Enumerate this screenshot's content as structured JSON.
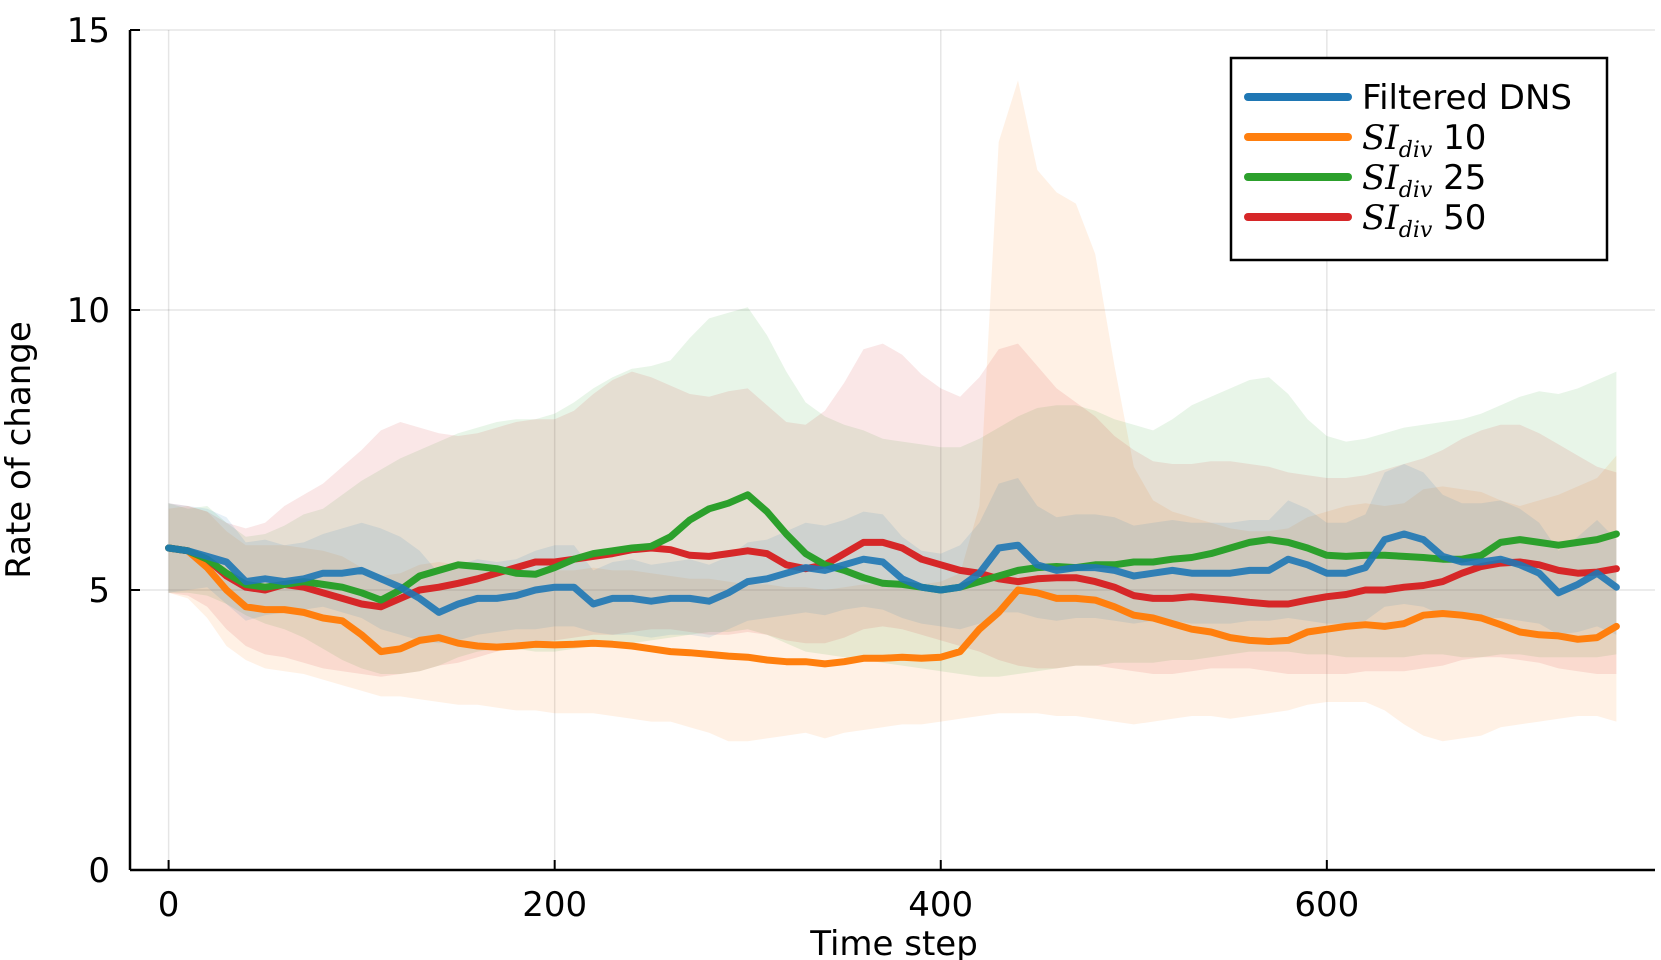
{
  "chart_data": {
    "type": "line",
    "title": "",
    "xlabel": "Time step",
    "ylabel": "Rate of change",
    "xlim": [
      -20,
      770
    ],
    "ylim": [
      0,
      15
    ],
    "xticks": [
      0,
      200,
      400,
      600
    ],
    "yticks": [
      0,
      5,
      10,
      15
    ],
    "grid": true,
    "legend_position": "top-right",
    "x": [
      0,
      10,
      20,
      30,
      40,
      50,
      60,
      70,
      80,
      90,
      100,
      110,
      120,
      130,
      140,
      150,
      160,
      170,
      180,
      190,
      200,
      210,
      220,
      230,
      240,
      250,
      260,
      270,
      280,
      290,
      300,
      310,
      320,
      330,
      340,
      350,
      360,
      370,
      380,
      390,
      400,
      410,
      420,
      430,
      440,
      450,
      460,
      470,
      480,
      490,
      500,
      510,
      520,
      530,
      540,
      550,
      560,
      570,
      580,
      590,
      600,
      610,
      620,
      630,
      640,
      650,
      660,
      670,
      680,
      690,
      700,
      710,
      720,
      730,
      740,
      750
    ],
    "series": [
      {
        "name": "Filtered DNS",
        "legend_label": "Filtered DNS",
        "color": "#1f77b4",
        "values": [
          5.75,
          5.7,
          5.6,
          5.5,
          5.15,
          5.2,
          5.15,
          5.2,
          5.3,
          5.3,
          5.35,
          5.2,
          5.05,
          4.85,
          4.6,
          4.75,
          4.85,
          4.85,
          4.9,
          5.0,
          5.05,
          5.05,
          4.75,
          4.85,
          4.85,
          4.8,
          4.85,
          4.85,
          4.8,
          4.95,
          5.15,
          5.2,
          5.3,
          5.4,
          5.35,
          5.45,
          5.55,
          5.5,
          5.2,
          5.05,
          5.0,
          5.05,
          5.3,
          5.75,
          5.8,
          5.45,
          5.35,
          5.4,
          5.4,
          5.35,
          5.25,
          5.3,
          5.35,
          5.3,
          5.3,
          5.3,
          5.35,
          5.35,
          5.55,
          5.45,
          5.3,
          5.3,
          5.4,
          5.9,
          6.0,
          5.9,
          5.6,
          5.5,
          5.5,
          5.55,
          5.45,
          5.3,
          4.95,
          5.1,
          5.3,
          5.05
        ],
        "band_lower": [
          4.95,
          5.0,
          5.05,
          4.75,
          4.45,
          4.55,
          4.6,
          4.65,
          4.7,
          4.6,
          4.5,
          4.3,
          4.2,
          4.1,
          4.05,
          4.1,
          4.2,
          4.25,
          4.3,
          4.3,
          4.35,
          4.35,
          4.25,
          4.2,
          4.2,
          4.15,
          4.2,
          4.2,
          4.15,
          4.3,
          4.45,
          4.5,
          4.55,
          4.6,
          4.55,
          4.65,
          4.7,
          4.65,
          4.5,
          4.4,
          4.35,
          4.3,
          4.4,
          4.6,
          4.6,
          4.5,
          4.45,
          4.5,
          4.5,
          4.45,
          4.4,
          4.45,
          4.45,
          4.4,
          4.4,
          4.4,
          4.45,
          4.45,
          4.5,
          4.45,
          4.4,
          4.4,
          4.45,
          4.7,
          4.75,
          4.7,
          4.55,
          4.5,
          4.5,
          4.5,
          4.45,
          4.4,
          4.2,
          4.25,
          4.35,
          4.2
        ],
        "band_upper": [
          6.55,
          6.5,
          6.45,
          6.3,
          5.85,
          5.9,
          5.8,
          5.85,
          6.0,
          6.1,
          6.2,
          6.1,
          5.95,
          5.7,
          5.3,
          5.45,
          5.55,
          5.5,
          5.55,
          5.7,
          5.8,
          5.8,
          5.35,
          5.5,
          5.55,
          5.45,
          5.5,
          5.55,
          5.45,
          5.6,
          5.85,
          5.9,
          6.05,
          6.2,
          6.15,
          6.25,
          6.4,
          6.35,
          5.95,
          5.7,
          5.65,
          5.8,
          6.2,
          6.9,
          7.0,
          6.5,
          6.3,
          6.35,
          6.35,
          6.3,
          6.15,
          6.2,
          6.25,
          6.2,
          6.2,
          6.2,
          6.25,
          6.25,
          6.6,
          6.45,
          6.2,
          6.2,
          6.35,
          7.1,
          7.25,
          7.1,
          6.7,
          6.55,
          6.55,
          6.6,
          6.45,
          6.2,
          5.7,
          5.95,
          6.25,
          5.9
        ]
      },
      {
        "name": "SI div 10",
        "legend_math": "SI",
        "legend_sub": "div",
        "legend_suffix": " 10",
        "color": "#ff7f0e",
        "values": [
          5.75,
          5.7,
          5.4,
          5.0,
          4.7,
          4.65,
          4.65,
          4.6,
          4.5,
          4.45,
          4.2,
          3.9,
          3.95,
          4.1,
          4.15,
          4.05,
          4.0,
          3.98,
          4.0,
          4.03,
          4.02,
          4.03,
          4.05,
          4.03,
          4.0,
          3.95,
          3.9,
          3.88,
          3.85,
          3.82,
          3.8,
          3.75,
          3.72,
          3.72,
          3.68,
          3.72,
          3.78,
          3.78,
          3.8,
          3.78,
          3.8,
          3.9,
          4.3,
          4.6,
          5.0,
          4.95,
          4.85,
          4.85,
          4.82,
          4.7,
          4.55,
          4.5,
          4.4,
          4.3,
          4.25,
          4.15,
          4.1,
          4.08,
          4.1,
          4.25,
          4.3,
          4.35,
          4.38,
          4.35,
          4.4,
          4.55,
          4.58,
          4.55,
          4.5,
          4.38,
          4.25,
          4.2,
          4.18,
          4.12,
          4.15,
          4.35
        ],
        "band_lower": [
          4.95,
          4.85,
          4.5,
          4.0,
          3.75,
          3.6,
          3.55,
          3.5,
          3.4,
          3.3,
          3.2,
          3.1,
          3.1,
          3.05,
          3.0,
          2.95,
          2.95,
          2.9,
          2.85,
          2.85,
          2.8,
          2.8,
          2.8,
          2.75,
          2.7,
          2.65,
          2.65,
          2.55,
          2.45,
          2.3,
          2.3,
          2.35,
          2.4,
          2.45,
          2.35,
          2.45,
          2.5,
          2.55,
          2.6,
          2.6,
          2.65,
          2.7,
          2.75,
          2.8,
          2.8,
          2.8,
          2.75,
          2.75,
          2.7,
          2.65,
          2.6,
          2.65,
          2.7,
          2.75,
          2.75,
          2.7,
          2.75,
          2.8,
          2.85,
          2.95,
          3.0,
          3.0,
          3.0,
          2.85,
          2.6,
          2.4,
          2.3,
          2.35,
          2.4,
          2.55,
          2.6,
          2.65,
          2.7,
          2.75,
          2.75,
          2.65
        ],
        "band_upper": [
          6.45,
          6.5,
          6.4,
          6.05,
          5.8,
          5.8,
          5.8,
          5.75,
          5.7,
          5.6,
          5.4,
          5.25,
          5.3,
          5.45,
          5.5,
          5.45,
          5.4,
          5.35,
          5.35,
          5.35,
          5.35,
          5.35,
          5.4,
          5.35,
          5.35,
          5.3,
          5.25,
          5.2,
          5.2,
          5.15,
          5.1,
          5.1,
          5.05,
          5.05,
          5.0,
          5.05,
          5.1,
          5.1,
          5.15,
          5.1,
          5.15,
          5.3,
          6.5,
          13.0,
          14.1,
          12.5,
          12.1,
          11.9,
          11.0,
          9.0,
          7.2,
          6.6,
          6.4,
          6.3,
          6.2,
          6.1,
          6.05,
          6.05,
          6.1,
          6.3,
          6.4,
          6.5,
          6.55,
          6.5,
          6.55,
          6.8,
          6.85,
          6.8,
          6.75,
          6.6,
          6.5,
          6.6,
          6.7,
          6.85,
          7.0,
          7.4
        ]
      },
      {
        "name": "SI div 25",
        "legend_math": "SI",
        "legend_sub": "div",
        "legend_suffix": " 25",
        "color": "#2ca02c",
        "values": [
          5.75,
          5.7,
          5.55,
          5.3,
          5.1,
          5.05,
          5.1,
          5.15,
          5.1,
          5.05,
          4.95,
          4.82,
          5.0,
          5.25,
          5.35,
          5.45,
          5.42,
          5.38,
          5.3,
          5.28,
          5.4,
          5.55,
          5.65,
          5.7,
          5.75,
          5.78,
          5.95,
          6.25,
          6.45,
          6.55,
          6.7,
          6.4,
          6.0,
          5.65,
          5.45,
          5.35,
          5.22,
          5.12,
          5.1,
          5.05,
          5.0,
          5.05,
          5.15,
          5.25,
          5.35,
          5.4,
          5.42,
          5.4,
          5.45,
          5.45,
          5.5,
          5.5,
          5.55,
          5.58,
          5.65,
          5.75,
          5.85,
          5.9,
          5.85,
          5.75,
          5.62,
          5.6,
          5.62,
          5.62,
          5.6,
          5.58,
          5.55,
          5.55,
          5.62,
          5.85,
          5.9,
          5.85,
          5.8,
          5.85,
          5.9,
          6.0
        ],
        "band_lower": [
          4.95,
          4.95,
          4.9,
          4.75,
          4.55,
          4.4,
          4.3,
          4.15,
          3.95,
          3.75,
          3.6,
          3.5,
          3.5,
          3.55,
          3.65,
          3.8,
          3.9,
          3.95,
          3.95,
          3.9,
          3.9,
          3.95,
          4.0,
          4.05,
          4.05,
          4.1,
          4.15,
          4.2,
          4.25,
          4.25,
          4.3,
          4.2,
          4.05,
          3.9,
          3.85,
          3.8,
          3.75,
          3.7,
          3.65,
          3.6,
          3.55,
          3.5,
          3.45,
          3.45,
          3.5,
          3.55,
          3.6,
          3.65,
          3.65,
          3.7,
          3.7,
          3.7,
          3.75,
          3.75,
          3.8,
          3.85,
          3.9,
          3.9,
          3.9,
          3.85,
          3.85,
          3.8,
          3.8,
          3.8,
          3.8,
          3.85,
          3.85,
          3.8,
          3.8,
          3.85,
          3.85,
          3.8,
          3.8,
          3.8,
          3.8,
          3.85
        ],
        "band_upper": [
          6.55,
          6.45,
          6.5,
          6.2,
          5.95,
          6.0,
          6.15,
          6.35,
          6.45,
          6.7,
          6.95,
          7.15,
          7.35,
          7.5,
          7.65,
          7.8,
          7.9,
          8.0,
          8.05,
          8.05,
          8.15,
          8.35,
          8.6,
          8.8,
          8.95,
          9.0,
          9.1,
          9.5,
          9.85,
          9.95,
          10.05,
          9.55,
          8.9,
          8.35,
          8.1,
          7.95,
          7.85,
          7.7,
          7.65,
          7.6,
          7.55,
          7.55,
          7.7,
          7.9,
          8.1,
          8.25,
          8.3,
          8.3,
          8.2,
          8.05,
          7.95,
          7.85,
          8.05,
          8.3,
          8.45,
          8.6,
          8.75,
          8.8,
          8.5,
          8.05,
          7.75,
          7.65,
          7.7,
          7.8,
          7.9,
          7.95,
          8.0,
          8.05,
          8.15,
          8.3,
          8.45,
          8.55,
          8.5,
          8.6,
          8.75,
          8.9
        ]
      },
      {
        "name": "SI div 50",
        "legend_math": "SI",
        "legend_sub": "div",
        "legend_suffix": " 50",
        "color": "#d62728",
        "values": [
          5.75,
          5.7,
          5.55,
          5.25,
          5.05,
          5.0,
          5.1,
          5.05,
          4.95,
          4.85,
          4.75,
          4.7,
          4.85,
          5.0,
          5.05,
          5.12,
          5.2,
          5.3,
          5.4,
          5.5,
          5.5,
          5.55,
          5.6,
          5.65,
          5.72,
          5.75,
          5.72,
          5.62,
          5.6,
          5.65,
          5.7,
          5.65,
          5.45,
          5.38,
          5.45,
          5.65,
          5.85,
          5.85,
          5.75,
          5.55,
          5.45,
          5.35,
          5.3,
          5.2,
          5.15,
          5.2,
          5.22,
          5.22,
          5.15,
          5.05,
          4.9,
          4.85,
          4.85,
          4.88,
          4.85,
          4.82,
          4.78,
          4.75,
          4.75,
          4.82,
          4.88,
          4.92,
          5.0,
          5.0,
          5.05,
          5.08,
          5.15,
          5.3,
          5.42,
          5.48,
          5.5,
          5.45,
          5.35,
          5.3,
          5.32,
          5.38
        ],
        "band_lower": [
          4.95,
          4.9,
          4.7,
          4.3,
          4.0,
          3.85,
          3.8,
          3.7,
          3.6,
          3.55,
          3.5,
          3.45,
          3.5,
          3.55,
          3.65,
          3.7,
          3.8,
          3.9,
          4.0,
          4.05,
          4.1,
          4.15,
          4.2,
          4.2,
          4.25,
          4.3,
          4.3,
          4.25,
          4.2,
          4.2,
          4.25,
          4.2,
          4.1,
          4.05,
          4.05,
          4.15,
          4.3,
          4.35,
          4.3,
          4.2,
          4.1,
          4.0,
          3.9,
          3.75,
          3.65,
          3.6,
          3.6,
          3.65,
          3.65,
          3.6,
          3.55,
          3.5,
          3.5,
          3.55,
          3.6,
          3.6,
          3.6,
          3.55,
          3.5,
          3.5,
          3.5,
          3.5,
          3.55,
          3.55,
          3.55,
          3.6,
          3.65,
          3.75,
          3.8,
          3.8,
          3.75,
          3.7,
          3.6,
          3.55,
          3.5,
          3.5
        ],
        "band_upper": [
          6.55,
          6.5,
          6.4,
          6.2,
          6.1,
          6.2,
          6.5,
          6.7,
          6.9,
          7.2,
          7.5,
          7.85,
          8.0,
          7.9,
          7.8,
          7.75,
          7.8,
          7.9,
          8.0,
          8.05,
          8.05,
          8.2,
          8.5,
          8.75,
          8.9,
          8.8,
          8.65,
          8.5,
          8.45,
          8.55,
          8.6,
          8.3,
          8.0,
          7.95,
          8.2,
          8.7,
          9.3,
          9.4,
          9.2,
          8.85,
          8.6,
          8.45,
          8.8,
          9.3,
          9.4,
          9.0,
          8.6,
          8.35,
          8.1,
          7.75,
          7.5,
          7.3,
          7.25,
          7.25,
          7.3,
          7.3,
          7.25,
          7.2,
          7.1,
          7.05,
          7.0,
          7.0,
          7.05,
          7.15,
          7.25,
          7.35,
          7.5,
          7.7,
          7.85,
          7.95,
          7.95,
          7.8,
          7.6,
          7.4,
          7.2,
          7.1
        ]
      }
    ]
  }
}
